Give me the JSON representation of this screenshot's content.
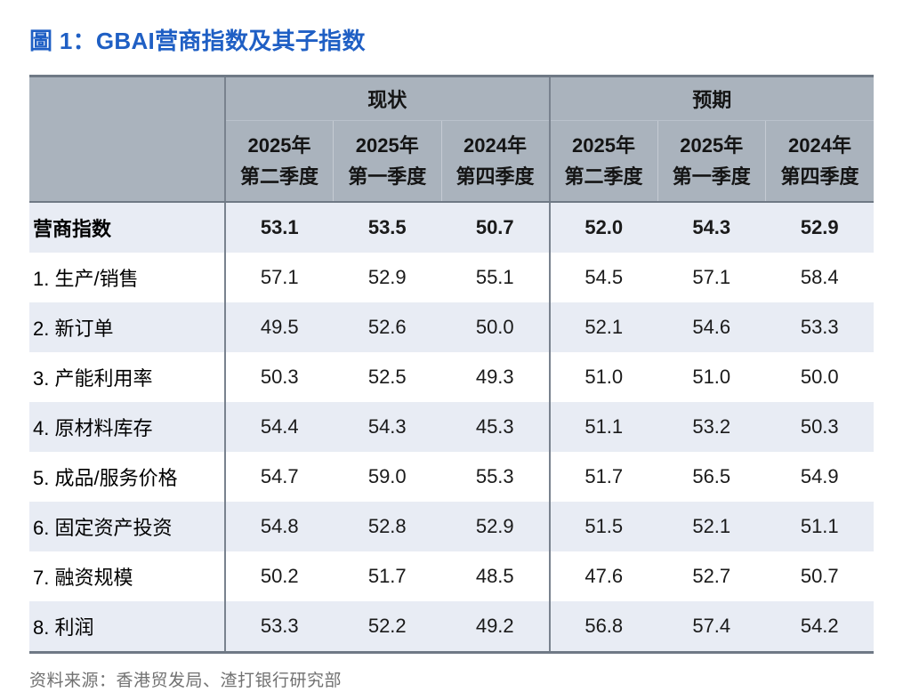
{
  "title": "圖 1：GBAI营商指数及其子指数",
  "source": "资料来源：香港贸发局、渣打银行研究部",
  "chart_data": {
    "type": "table",
    "title": "圖 1：GBAI营商指数及其子指数",
    "group_headers": [
      {
        "label": "现状",
        "columns": [
          [
            "2025年",
            "第二季度"
          ],
          [
            "2025年",
            "第一季度"
          ],
          [
            "2024年",
            "第四季度"
          ]
        ]
      },
      {
        "label": "预期",
        "columns": [
          [
            "2025年",
            "第二季度"
          ],
          [
            "2025年",
            "第一季度"
          ],
          [
            "2024年",
            "第四季度"
          ]
        ]
      }
    ],
    "rows": [
      {
        "label": "营商指数",
        "bold": true,
        "values": [
          53.1,
          53.5,
          50.7,
          52.0,
          54.3,
          52.9
        ]
      },
      {
        "label": "1. 生产/销售",
        "bold": false,
        "values": [
          57.1,
          52.9,
          55.1,
          54.5,
          57.1,
          58.4
        ]
      },
      {
        "label": "2. 新订单",
        "bold": false,
        "values": [
          49.5,
          52.6,
          50.0,
          52.1,
          54.6,
          53.3
        ]
      },
      {
        "label": "3. 产能利用率",
        "bold": false,
        "values": [
          50.3,
          52.5,
          49.3,
          51.0,
          51.0,
          50.0
        ]
      },
      {
        "label": "4. 原材料库存",
        "bold": false,
        "values": [
          54.4,
          54.3,
          45.3,
          51.1,
          53.2,
          50.3
        ]
      },
      {
        "label": "5. 成品/服务价格",
        "bold": false,
        "values": [
          54.7,
          59.0,
          55.3,
          51.7,
          56.5,
          54.9
        ]
      },
      {
        "label": "6. 固定资产投资",
        "bold": false,
        "values": [
          54.8,
          52.8,
          52.9,
          51.5,
          52.1,
          51.1
        ]
      },
      {
        "label": "7. 融资规模",
        "bold": false,
        "values": [
          50.2,
          51.7,
          48.5,
          47.6,
          52.7,
          50.7
        ]
      },
      {
        "label": "8. 利润",
        "bold": false,
        "values": [
          53.3,
          52.2,
          49.2,
          56.8,
          57.4,
          54.2
        ]
      }
    ],
    "source": "资料来源：香港贸发局、渣打银行研究部"
  },
  "colors": {
    "title_blue": "#1f5fc4",
    "header_bg": "#aab3bd",
    "row_alt_bg": "#e8ecf4",
    "row_bg": "#ffffff",
    "border_dark": "#6f7985",
    "divider_dark": "#79828e",
    "divider_faint": "#c5cbd3",
    "source_text": "#717171"
  }
}
